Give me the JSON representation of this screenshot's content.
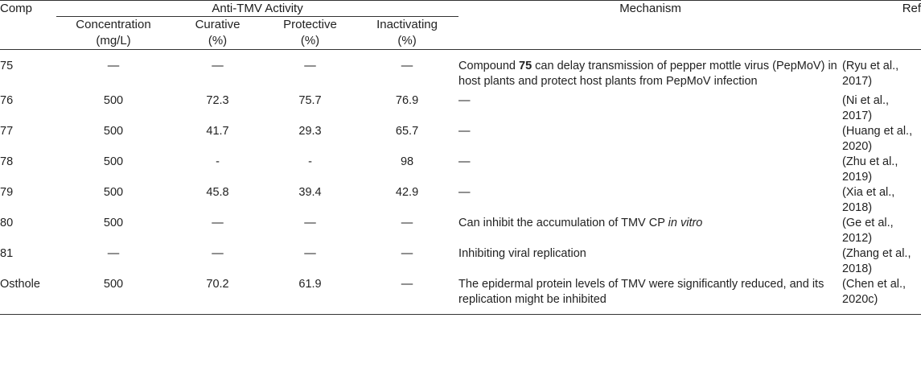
{
  "header": {
    "comp": "Comp",
    "group": "Anti-TMV Activity",
    "mechanism": "Mechanism",
    "ref": "Ref",
    "sub": {
      "concentration_l1": "Concentration",
      "concentration_l2": "(mg/L)",
      "curative_l1": "Curative",
      "curative_l2": "(%)",
      "protective_l1": "Protective",
      "protective_l2": "(%)",
      "inactivating_l1": "Inactivating",
      "inactivating_l2": "(%)"
    }
  },
  "rows": [
    {
      "comp": "75",
      "concentration": "—",
      "curative": "—",
      "protective": "—",
      "inactivating": "—",
      "mechanism_pre": "Compound ",
      "mechanism_bold": "75",
      "mechanism_post": " can delay transmission of pepper mottle virus (PepMoV) in host plants and protect host plants from PepMoV infection",
      "ref_l1": "(Ryu et al.,",
      "ref_l2": "2017)"
    },
    {
      "comp": "76",
      "concentration": "500",
      "curative": "72.3",
      "protective": "75.7",
      "inactivating": "76.9",
      "mechanism": "—",
      "ref_l1": "(Ni et al.,",
      "ref_l2": "2017)"
    },
    {
      "comp": "77",
      "concentration": "500",
      "curative": "41.7",
      "protective": "29.3",
      "inactivating": "65.7",
      "mechanism": "—",
      "ref_l1": "(Huang et al.,",
      "ref_l2": "2020)"
    },
    {
      "comp": "78",
      "concentration": "500",
      "curative": "-",
      "protective": "-",
      "inactivating": "98",
      "mechanism": "—",
      "ref_l1": "(Zhu et al.,",
      "ref_l2": "2019)"
    },
    {
      "comp": "79",
      "concentration": "500",
      "curative": "45.8",
      "protective": "39.4",
      "inactivating": "42.9",
      "mechanism": "—",
      "ref_l1": "(Xia et al.,",
      "ref_l2": "2018)"
    },
    {
      "comp": "80",
      "concentration": "500",
      "curative": "—",
      "protective": "—",
      "inactivating": "—",
      "mechanism_pre": "Can inhibit the accumulation of TMV CP ",
      "mechanism_italic": "in vitro",
      "ref_l1": "(Ge et al.,",
      "ref_l2": "2012)"
    },
    {
      "comp": "81",
      "concentration": "—",
      "curative": "—",
      "protective": "—",
      "inactivating": "—",
      "mechanism": "Inhibiting viral replication",
      "ref_l1": "(Zhang et al.,",
      "ref_l2": "2018)"
    },
    {
      "comp": "Osthole",
      "concentration": "500",
      "curative": "70.2",
      "protective": "61.9",
      "inactivating": "—",
      "mechanism": "The epidermal protein levels of TMV were significantly reduced, and its replication might be inhibited",
      "ref_l1": "(Chen et al.,",
      "ref_l2": "2020c)"
    }
  ]
}
